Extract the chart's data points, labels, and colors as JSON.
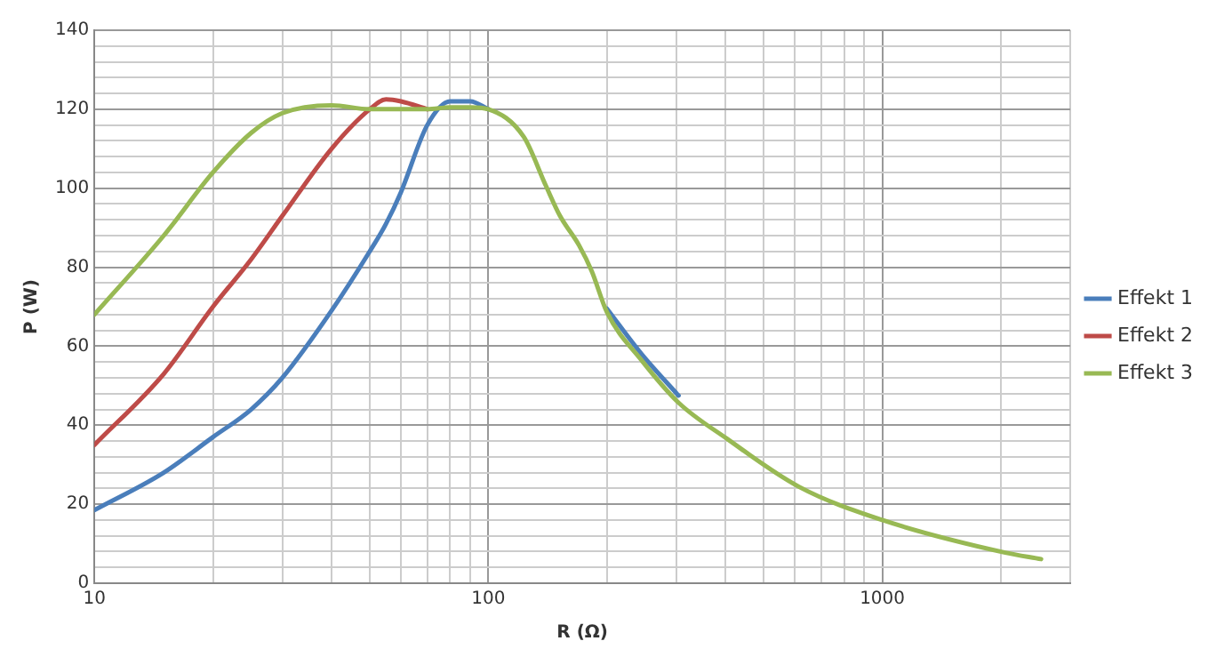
{
  "chart_data": {
    "type": "line",
    "xlabel": "R (Ω)",
    "ylabel": "P (W)",
    "log": "x",
    "grid": true,
    "legend": "right",
    "marker": "none",
    "line_style": "solid",
    "xlim": [
      10,
      3000
    ],
    "ylim": [
      0,
      140
    ],
    "xticks": [
      10,
      {
        "value": 20,
        "label": null
      },
      {
        "value": 30,
        "label": null
      },
      {
        "value": 40,
        "label": null
      },
      {
        "value": 50,
        "label": null
      },
      {
        "value": 60,
        "label": null
      },
      {
        "value": 70,
        "label": null
      },
      {
        "value": 80,
        "label": null
      },
      {
        "value": 90,
        "label": null
      },
      100,
      {
        "value": 200,
        "label": null
      },
      {
        "value": 300,
        "label": null
      },
      {
        "value": 400,
        "label": null
      },
      {
        "value": 500,
        "label": null
      },
      {
        "value": 600,
        "label": null
      },
      {
        "value": 700,
        "label": null
      },
      {
        "value": 800,
        "label": null
      },
      {
        "value": 900,
        "label": null
      },
      1000,
      {
        "value": 2000,
        "label": null
      },
      {
        "value": 3000,
        "label": null
      }
    ],
    "yticks": [
      0,
      {
        "value": 4,
        "label": null
      },
      {
        "value": 8,
        "label": null
      },
      {
        "value": 12,
        "label": null
      },
      {
        "value": 16,
        "label": null
      },
      20,
      {
        "value": 24,
        "label": null
      },
      {
        "value": 28,
        "label": null
      },
      {
        "value": 32,
        "label": null
      },
      {
        "value": 36,
        "label": null
      },
      40,
      {
        "value": 44,
        "label": null
      },
      {
        "value": 48,
        "label": null
      },
      {
        "value": 52,
        "label": null
      },
      {
        "value": 56,
        "label": null
      },
      60,
      {
        "value": 64,
        "label": null
      },
      {
        "value": 68,
        "label": null
      },
      {
        "value": 72,
        "label": null
      },
      {
        "value": 76,
        "label": null
      },
      80,
      {
        "value": 84,
        "label": null
      },
      {
        "value": 88,
        "label": null
      },
      {
        "value": 92,
        "label": null
      },
      {
        "value": 96,
        "label": null
      },
      100,
      {
        "value": 104,
        "label": null
      },
      {
        "value": 108,
        "label": null
      },
      {
        "value": 112,
        "label": null
      },
      {
        "value": 116,
        "label": null
      },
      120,
      {
        "value": 124,
        "label": null
      },
      {
        "value": 128,
        "label": null
      },
      {
        "value": 132,
        "label": null
      },
      {
        "value": 136,
        "label": null
      },
      140
    ],
    "x": [
      10,
      15,
      20,
      25,
      30,
      40,
      50,
      55,
      60,
      70,
      80,
      90,
      100,
      123,
      140,
      152,
      170,
      183,
      200,
      245,
      304,
      403,
      615,
      1000,
      2040,
      2530
    ],
    "series": [
      {
        "name": "Effekt 1",
        "color": "#4a7ebb",
        "values": [
          18.5,
          28,
          37,
          44,
          52,
          69,
          84,
          91,
          99,
          116,
          122,
          122,
          120,
          null,
          null,
          null,
          null,
          null,
          69.5,
          58,
          47.5,
          null,
          null,
          null,
          null,
          null
        ]
      },
      {
        "name": "Effekt 2",
        "color": "#be4b48",
        "values": [
          35,
          53,
          70,
          82,
          93,
          110,
          120,
          122.5,
          122,
          120,
          null,
          null,
          null,
          null,
          null,
          null,
          null,
          null,
          null,
          null,
          null,
          null,
          null,
          null,
          null,
          null
        ]
      },
      {
        "name": "Effekt 3",
        "color": "#98b954",
        "values": [
          68,
          88,
          104,
          114,
          119,
          121,
          120,
          120,
          120,
          120,
          120.5,
          120.5,
          120,
          113,
          100.6,
          93,
          85.5,
          79,
          68.6,
          56.4,
          45.7,
          36.6,
          24.4,
          16,
          7.8,
          6.1
        ]
      }
    ]
  }
}
